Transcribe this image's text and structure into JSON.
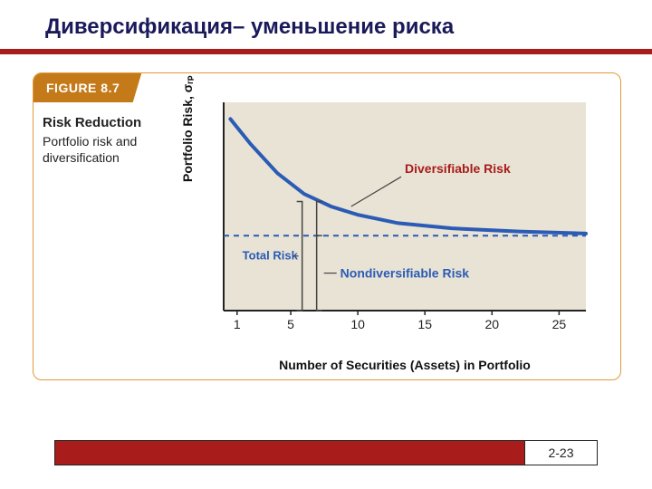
{
  "title": "Диверсификация– уменьшение риска",
  "figure": {
    "tab": "FIGURE 8.7",
    "heading": "Risk Reduction",
    "subheading": "Portfolio risk and diversification"
  },
  "chart": {
    "type": "line",
    "ylabel": "Portfolio Risk, σᵣₚ",
    "xlabel": "Number of Securities (Assets) in Portfolio",
    "xlim": [
      0,
      27
    ],
    "ylim": [
      0,
      1
    ],
    "xticks": [
      1,
      5,
      10,
      15,
      20,
      25
    ],
    "asymptote_y": 0.36,
    "curve_points": [
      {
        "x": 0.5,
        "y": 0.92
      },
      {
        "x": 2,
        "y": 0.8
      },
      {
        "x": 4,
        "y": 0.66
      },
      {
        "x": 6,
        "y": 0.56
      },
      {
        "x": 8,
        "y": 0.5
      },
      {
        "x": 10,
        "y": 0.46
      },
      {
        "x": 13,
        "y": 0.42
      },
      {
        "x": 17,
        "y": 0.395
      },
      {
        "x": 22,
        "y": 0.38
      },
      {
        "x": 27,
        "y": 0.37
      }
    ],
    "bracket_x": 7.2,
    "labels": {
      "diversifiable": "Diversifiable Risk",
      "total": "Total Risk",
      "nondiversifiable": "Nondiversifiable Risk"
    },
    "colors": {
      "plot_bg": "#e8e3d5",
      "axis": "#222222",
      "curve": "#2b5bb5",
      "asymptote": "#2b5bb5",
      "bracket": "#444444",
      "label_div": "#a81c1c",
      "label_total": "#2b5bb5",
      "label_nondiv": "#2b5bb5",
      "tick_text": "#222222"
    },
    "curve_width": 4,
    "tick_fontsize": 14
  },
  "footer": {
    "page": "2-23"
  }
}
